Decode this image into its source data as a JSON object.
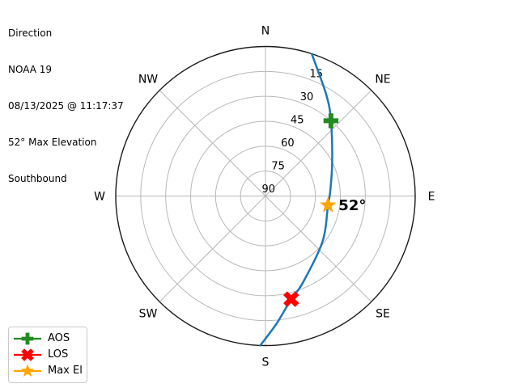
{
  "title": {
    "lines": [
      "Direction",
      "NOAA 19",
      "08/13/2025 @ 11:17:37",
      "52° Max Elevation",
      "Southbound"
    ]
  },
  "chart_data": {
    "type": "polar_sky_track",
    "title": "Direction",
    "satellite": "NOAA 19",
    "pass_time": "08/13/2025 @ 11:17:37",
    "max_elevation_deg": 52,
    "pass_direction": "Southbound",
    "elevation_rings_deg": [
      15,
      30,
      45,
      60,
      75,
      90
    ],
    "compass_points": [
      {
        "label": "N",
        "az": 0
      },
      {
        "label": "NE",
        "az": 45
      },
      {
        "label": "E",
        "az": 90
      },
      {
        "label": "SE",
        "az": 135
      },
      {
        "label": "S",
        "az": 180
      },
      {
        "label": "SW",
        "az": 225
      },
      {
        "label": "W",
        "az": 270
      },
      {
        "label": "NW",
        "az": 315
      }
    ],
    "track_points_az_el": [
      [
        18,
        0
      ],
      [
        31,
        19
      ],
      [
        41,
        30
      ],
      [
        63,
        45
      ],
      [
        86,
        51
      ],
      [
        98.5,
        52
      ],
      [
        129,
        46
      ],
      [
        157,
        33
      ],
      [
        166,
        26
      ],
      [
        175,
        13
      ],
      [
        182,
        0
      ]
    ],
    "markers": [
      {
        "id": "aos",
        "label": "AOS",
        "shape": "plus",
        "color": "#228B22",
        "az": 41,
        "el": 30
      },
      {
        "id": "los",
        "label": "LOS",
        "shape": "x",
        "color": "#ff0000",
        "az": 166,
        "el": 26
      },
      {
        "id": "max-el",
        "label": "Max El",
        "shape": "star",
        "color": "#ffa500",
        "az": 98.5,
        "el": 52
      }
    ],
    "annotation": {
      "text": "52°",
      "attached_to": "max-el"
    },
    "legend": [
      {
        "label": "AOS",
        "shape": "plus",
        "color": "#228B22"
      },
      {
        "label": "LOS",
        "shape": "x",
        "color": "#ff0000"
      },
      {
        "label": "Max El",
        "shape": "star",
        "color": "#ffa500"
      }
    ],
    "colors": {
      "track": "#1f77b4",
      "grid": "#b8b8b8",
      "horizon": "#1a1a1a"
    }
  }
}
